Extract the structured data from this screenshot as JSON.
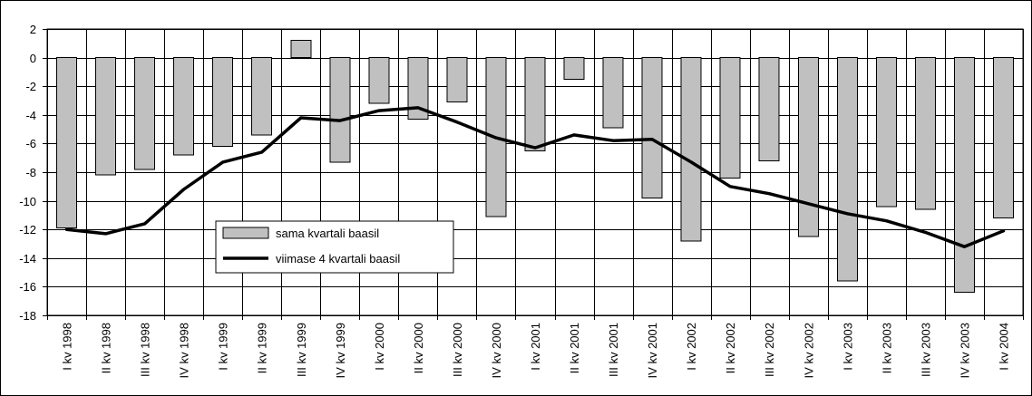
{
  "chart_data": {
    "type": "bar",
    "categories": [
      "I kv 1998",
      "II kv 1998",
      "III kv 1998",
      "IV kv 1998",
      "I kv 1999",
      "II kv 1999",
      "III kv 1999",
      "IV kv 1999",
      "I kv 2000",
      "II kv 2000",
      "III kv 2000",
      "IV kv 2000",
      "I kv 2001",
      "II kv 2001",
      "III kv 2001",
      "IV kv 2001",
      "I kv 2002",
      "II kv 2002",
      "III kv 2002",
      "IV kv 2002",
      "I kv 2003",
      "II kv 2003",
      "III kv 2003",
      "IV kv 2003",
      "I kv 2004"
    ],
    "series": [
      {
        "name": "sama kvartali baasil",
        "kind": "bar",
        "color": "#c0c0c0",
        "values": [
          -11.9,
          -8.2,
          -7.8,
          -6.8,
          -6.2,
          -5.4,
          1.2,
          -7.3,
          -3.2,
          -4.3,
          -3.1,
          -11.1,
          -6.5,
          -1.5,
          -4.9,
          -9.8,
          -12.8,
          -8.4,
          -7.2,
          -12.5,
          -15.6,
          -10.4,
          -10.6,
          -16.4,
          -11.2
        ]
      },
      {
        "name": "viimase 4 kvartali baasil",
        "kind": "line",
        "color": "#000000",
        "values": [
          -12.0,
          -12.3,
          -11.6,
          -9.2,
          -7.3,
          -6.6,
          -4.2,
          -4.4,
          -3.7,
          -3.5,
          -4.5,
          -5.6,
          -6.3,
          -5.4,
          -5.8,
          -5.7,
          -7.3,
          -9.0,
          -9.5,
          -10.2,
          -10.9,
          -11.4,
          -12.2,
          -13.2,
          -12.1
        ]
      }
    ],
    "ylim": [
      -18,
      2
    ],
    "yticks": [
      "2",
      "0",
      "-2",
      "-4",
      "-6",
      "-8",
      "-10",
      "-12",
      "-14",
      "-16",
      "-18"
    ],
    "grid": true,
    "legend_position": "lower-left inside plot"
  }
}
